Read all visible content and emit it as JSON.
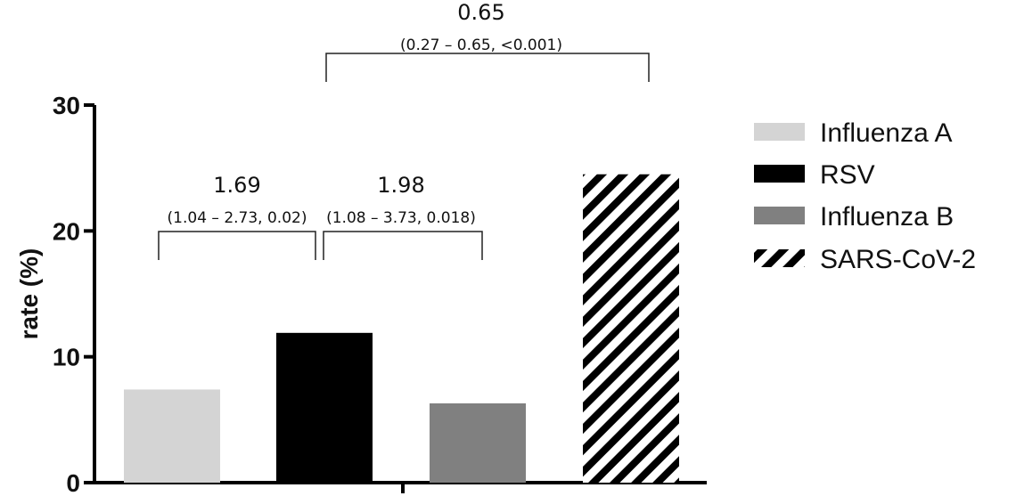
{
  "chart_data": {
    "type": "bar",
    "title": "",
    "xlabel": "",
    "ylabel": "rate (%)",
    "ylim": [
      0,
      30
    ],
    "yticks": [
      "0",
      "10",
      "20",
      "30"
    ],
    "series": [
      {
        "name": "Influenza A",
        "value": 7.4,
        "color": "#d4d4d4",
        "pattern": "solid"
      },
      {
        "name": "RSV",
        "value": 11.9,
        "color": "#000000",
        "pattern": "solid"
      },
      {
        "name": "Influenza B",
        "value": 6.3,
        "color": "#808080",
        "pattern": "solid"
      },
      {
        "name": "SARS-CoV-2",
        "value": 24.5,
        "color": "#000000",
        "pattern": "diagonal-stripes"
      }
    ],
    "annotations": [
      {
        "from": "Influenza A",
        "to": "RSV",
        "value": "1.69",
        "detail": "(1.04 – 2.73, 0.02)"
      },
      {
        "from": "RSV",
        "to": "Influenza B",
        "value": "1.98",
        "detail": "(1.08 – 3.73, 0.018)"
      },
      {
        "from": "RSV",
        "to": "SARS-CoV-2",
        "value": "0.65",
        "detail": "(0.27 – 0.65, <0.001)"
      }
    ],
    "legend_position": "right",
    "grid": false
  }
}
